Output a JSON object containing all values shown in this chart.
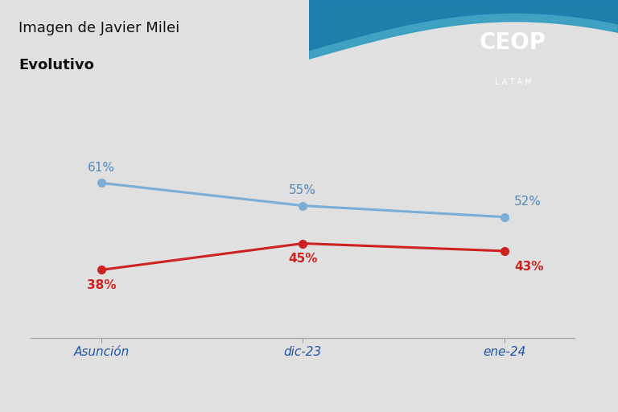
{
  "title1": "Imagen de Javier Milei",
  "title2": "Evolutivo",
  "categories": [
    "Asunción",
    "dic-23",
    "ene-24"
  ],
  "blue_values": [
    61,
    55,
    52
  ],
  "red_values": [
    38,
    45,
    43
  ],
  "blue_color": "#7aaed6",
  "red_color": "#cc2222",
  "bg_color": "#e0e0e0",
  "title_color": "#111111",
  "axis_label_color": "#2255aa",
  "blue_label_color": "#5588bb",
  "red_label_color": "#cc2222",
  "line_width": 2.2,
  "marker_size": 7,
  "ceop_bg_color": "#1a7aaa",
  "wave_color": "#2e9bbf",
  "x_positions": [
    0,
    1,
    2
  ]
}
